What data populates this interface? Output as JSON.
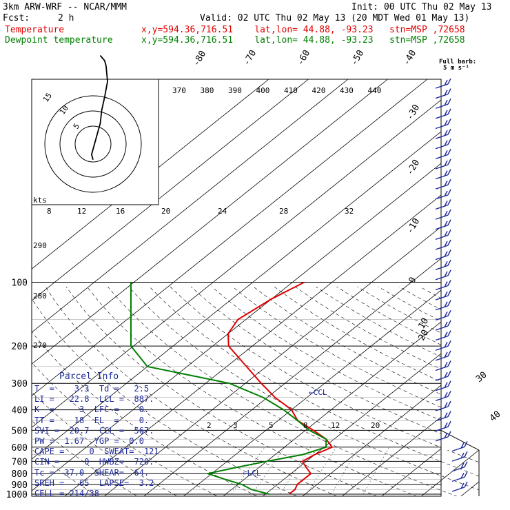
{
  "header": {
    "model": "3km ARW-WRF -- NCAR/MMM",
    "init": "Init: 00 UTC Thu 02 May 13",
    "fcst_label": "Fcst:",
    "fcst_value": "2 h",
    "valid": "Valid: 02 UTC Thu 02 May 13 (20 MDT Wed 01 May 13)",
    "temperature_label": "Temperature",
    "dewpoint_label": "Dewpoint temperature",
    "location_line": "x,y=594.36,716.51    lat,lon= 44.88, -93.23   stn=MSP ,72658"
  },
  "barb_legend": {
    "title": "Full barb:",
    "unit": "5 m s⁻¹"
  },
  "hodograph": {
    "rings": [
      "5",
      "10",
      "15"
    ],
    "unit": "kts"
  },
  "parcel_info": {
    "title": "Parcel Info",
    "rows": [
      "T  =    3.3  Td =   2.5",
      "LI =   22.8  LCL =  887.",
      "K  =     3  LFC =    0.",
      "TT =    18  EL  =    0.",
      "SVI =  20.7  CCL =  567.",
      "PW =  1.67  YGP =  0.0",
      "CAPE =     0  SWEAT=  121",
      "CIN =     0  HWBZ=  720.",
      "Tc =  37.0  SHEAR=  64.",
      "SREH =   65  LAPSE=  3.2",
      "CELL = 214/38"
    ]
  },
  "chart_data": {
    "type": "line",
    "chart_kind": "Skew-T log-P diagram",
    "y_axis": {
      "quantity": "pressure (hPa)",
      "scale": "log",
      "inverted": true,
      "range": [
        1000,
        100
      ],
      "tick_labels": [
        "100",
        "200",
        "300",
        "400",
        "500",
        "600",
        "700",
        "800",
        "900",
        "1000"
      ]
    },
    "isotherm_labels": [
      "-80",
      "-70",
      "-60",
      "-50",
      "-40",
      "-30",
      "-20",
      "-10",
      "0",
      "10",
      "20",
      "30",
      "40"
    ],
    "theta_labels": [
      "370",
      "380",
      "390",
      "400",
      "410",
      "420",
      "430",
      "440"
    ],
    "theta_left_labels": [
      "290",
      "280",
      "270"
    ],
    "mixing_ratio_top_labels": [
      "8",
      "12",
      "16",
      "20",
      "24",
      "28",
      "32"
    ],
    "mixing_ratio_low_labels": [
      "2",
      "3",
      "5",
      "8",
      "12",
      "20"
    ],
    "annotations": [
      "CCL",
      "LCL"
    ],
    "grid": true,
    "series": [
      {
        "name": "Temperature",
        "color": "#e00000",
        "values": [
          [
            100,
            -57
          ],
          [
            120,
            -60
          ],
          [
            150,
            -62
          ],
          [
            175,
            -60
          ],
          [
            200,
            -56
          ],
          [
            250,
            -45
          ],
          [
            300,
            -36
          ],
          [
            350,
            -28
          ],
          [
            400,
            -20
          ],
          [
            450,
            -15
          ],
          [
            500,
            -8
          ],
          [
            550,
            -2
          ],
          [
            600,
            2
          ],
          [
            650,
            0
          ],
          [
            700,
            -1
          ],
          [
            750,
            2
          ],
          [
            800,
            5
          ],
          [
            850,
            5
          ],
          [
            900,
            5
          ],
          [
            950,
            6
          ],
          [
            1000,
            6
          ]
        ]
      },
      {
        "name": "Dewpoint temperature",
        "color": "#008000",
        "values": [
          [
            100,
            -110
          ],
          [
            120,
            -108
          ],
          [
            150,
            -102
          ],
          [
            175,
            -98
          ],
          [
            200,
            -92
          ],
          [
            250,
            -70
          ],
          [
            300,
            -44
          ],
          [
            350,
            -31
          ],
          [
            400,
            -22
          ],
          [
            450,
            -15
          ],
          [
            500,
            -9
          ],
          [
            550,
            -2
          ],
          [
            600,
            0.5
          ],
          [
            650,
            -3
          ],
          [
            700,
            -10
          ],
          [
            750,
            -16
          ],
          [
            800,
            -21
          ],
          [
            850,
            -15
          ],
          [
            900,
            -9
          ],
          [
            950,
            -5
          ],
          [
            1000,
            1
          ]
        ]
      }
    ],
    "wind_barbs_count": 41,
    "hodograph_series": [
      [
        5,
        34
      ],
      [
        8,
        32
      ],
      [
        9,
        30
      ],
      [
        10,
        24
      ],
      [
        8,
        18
      ],
      [
        6,
        13
      ],
      [
        5,
        8
      ],
      [
        3,
        4
      ],
      [
        1,
        0
      ],
      [
        -1,
        -4
      ],
      [
        0,
        -6
      ]
    ]
  }
}
